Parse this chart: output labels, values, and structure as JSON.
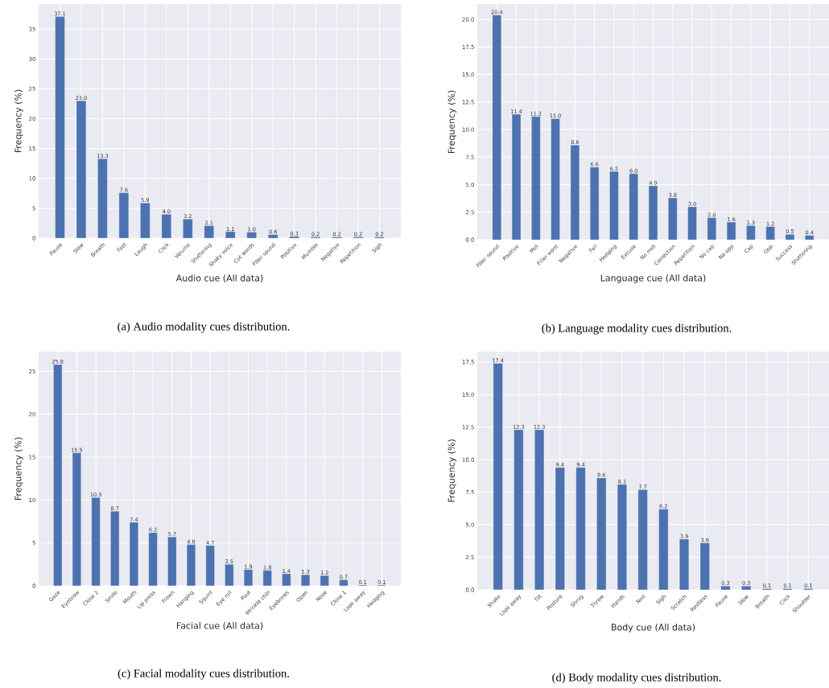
{
  "chart_data": [
    {
      "type": "bar",
      "xlabel": "Audio cue (All data)",
      "ylabel": "Frequency (%)",
      "color": "#4c72b0",
      "grid": true,
      "categories": [
        "Pause",
        "Slow",
        "Breath",
        "Fast",
        "Laugh",
        "Click",
        "Volume",
        "Stuttering",
        "Shaky voice",
        "Cut words",
        "Filler sound",
        "Positive",
        "Mumble",
        "Negative",
        "Repetition",
        "Sigh"
      ],
      "values": [
        37.1,
        23.0,
        13.3,
        7.6,
        5.9,
        4.0,
        3.2,
        2.1,
        1.1,
        1.0,
        0.6,
        0.3,
        0.2,
        0.2,
        0.2,
        0.2
      ],
      "value_labels": [
        "37.1",
        "23.0",
        "13.3",
        "7.6",
        "5.9",
        "4.0",
        "3.2",
        "2.1",
        "1.1",
        "1.0",
        "0.6",
        "0.3",
        "0.2",
        "0.2",
        "0.2",
        "0.2"
      ],
      "ylim": [
        0,
        39.2
      ],
      "yticks": [
        0,
        5,
        10,
        15,
        20,
        25,
        30,
        35
      ],
      "annotations": [
        "(a) Audio modality cues distribution."
      ]
    },
    {
      "type": "bar",
      "xlabel": "Language cue (All data)",
      "ylabel": "Frequency (%)",
      "color": "#4c72b0",
      "grid": true,
      "categories": [
        "Filler sound",
        "Positive",
        "Mot",
        "Filler word",
        "Negative",
        "Fail",
        "Hedging",
        "Excuse",
        "No mot",
        "Correction",
        "Repetition",
        "No cap",
        "No opp",
        "Cap",
        "Opp",
        "Success",
        "Stuttering"
      ],
      "values": [
        20.4,
        11.4,
        11.2,
        11.0,
        8.6,
        6.6,
        6.2,
        6.0,
        4.9,
        3.8,
        3.0,
        2.0,
        1.6,
        1.3,
        1.2,
        0.5,
        0.4
      ],
      "value_labels": [
        "20.4",
        "11.4",
        "11.2",
        "11.0",
        "8.6",
        "6.6",
        "6.2",
        "6.0",
        "4.9",
        "3.8",
        "3.0",
        "2.0",
        "1.6",
        "1.3",
        "1.2",
        "0.5",
        "0.4"
      ],
      "ylim": [
        0,
        21.4
      ],
      "yticks": [
        {
          "value": 0,
          "label": "0.0"
        },
        2.5,
        {
          "value": 5,
          "label": "5.0"
        },
        7.5,
        {
          "value": 10,
          "label": "10.0"
        },
        12.5,
        {
          "value": 15,
          "label": "15.0"
        },
        17.5,
        {
          "value": 20,
          "label": "20.0"
        }
      ],
      "annotations": [
        "(b) Language modality cues distribution."
      ]
    },
    {
      "type": "bar",
      "xlabel": "Facial cue (All data)",
      "ylabel": "Frequency (%)",
      "color": "#4c72b0",
      "grid": true,
      "categories": [
        "Gaze",
        "Eyebrow",
        "Close 2",
        "Smile",
        "Mouth",
        "Lip press",
        "Frown",
        "Hanging",
        "Squint",
        "Eye roll",
        "Pout",
        "Wrinkle chin",
        "Eyebrows",
        "Open",
        "Nose",
        "Close 1",
        "Look away",
        "Hedging"
      ],
      "values": [
        25.8,
        15.5,
        10.3,
        8.7,
        7.4,
        6.2,
        5.7,
        4.8,
        4.7,
        2.5,
        1.9,
        1.8,
        1.4,
        1.3,
        1.2,
        0.7,
        0.1,
        0.1
      ],
      "value_labels": [
        "25.8",
        "15.5",
        "10.3",
        "8.7",
        "7.4",
        "6.2",
        "5.7",
        "4.8",
        "4.7",
        "2.5",
        "1.9",
        "1.8",
        "1.4",
        "1.3",
        "1.2",
        "0.7",
        "0.1",
        "0.1"
      ],
      "ylim": [
        0,
        27.3
      ],
      "yticks": [
        0,
        5,
        10,
        15,
        20,
        25
      ],
      "annotations": [
        "(c) Facial modality cues distribution."
      ]
    },
    {
      "type": "bar",
      "xlabel": "Body cue (All data)",
      "ylabel": "Frequency (%)",
      "color": "#4c72b0",
      "grid": true,
      "categories": [
        "Shake",
        "Look away",
        "Tilt",
        "Posture",
        "Shrug",
        "Throw",
        "Hands",
        "Nod",
        "Sigh",
        "Scratch",
        "Restless",
        "Pause",
        "Slow",
        "Breath",
        "Click",
        "Shoulder"
      ],
      "values": [
        17.4,
        12.3,
        12.3,
        9.4,
        9.4,
        8.6,
        8.1,
        7.7,
        6.2,
        3.9,
        3.6,
        0.3,
        0.3,
        0.1,
        0.1,
        0.1
      ],
      "value_labels": [
        "17.4",
        "12.3",
        "12.3",
        "9.4",
        "9.4",
        "8.6",
        "8.1",
        "7.7",
        "6.2",
        "3.9",
        "3.6",
        "0.3",
        "0.3",
        "0.1",
        "0.1",
        "0.1"
      ],
      "ylim": [
        0,
        18.3
      ],
      "yticks": [
        {
          "value": 0,
          "label": "0.0"
        },
        2.5,
        {
          "value": 5,
          "label": "5.0"
        },
        7.5,
        {
          "value": 10,
          "label": "10.0"
        },
        12.5,
        {
          "value": 15,
          "label": "15.0"
        },
        17.5
      ],
      "annotations": [
        "(d) Body modality cues distribution."
      ]
    }
  ]
}
